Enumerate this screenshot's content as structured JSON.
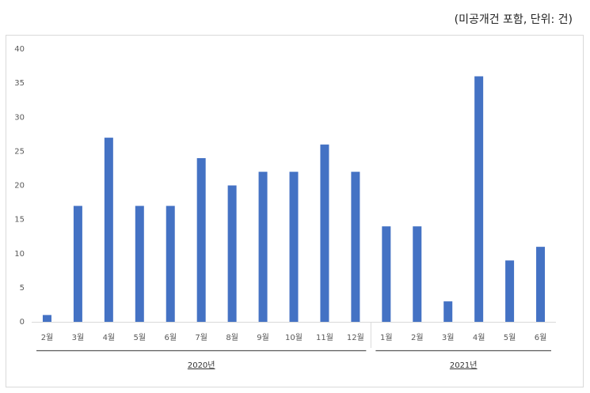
{
  "caption": "(미공개건 포함, 단위: 건)",
  "chart_data": {
    "type": "bar",
    "title": "",
    "xlabel": "",
    "ylabel": "",
    "ylim": [
      0,
      40
    ],
    "yticks": [
      0,
      5,
      10,
      15,
      20,
      25,
      30,
      35,
      40
    ],
    "grid": false,
    "bar_color": "#4472c4",
    "categories": [
      "2월",
      "3월",
      "4월",
      "5월",
      "6월",
      "7월",
      "8월",
      "9월",
      "10월",
      "11월",
      "12월",
      "1월",
      "2월",
      "3월",
      "4월",
      "5월",
      "6월"
    ],
    "values": [
      1,
      17,
      27,
      17,
      17,
      24,
      20,
      22,
      22,
      26,
      22,
      14,
      14,
      3,
      36,
      9,
      11
    ],
    "groups": [
      {
        "label": "2020년",
        "start": 0,
        "end": 10
      },
      {
        "label": "2021년",
        "start": 11,
        "end": 16
      }
    ]
  }
}
